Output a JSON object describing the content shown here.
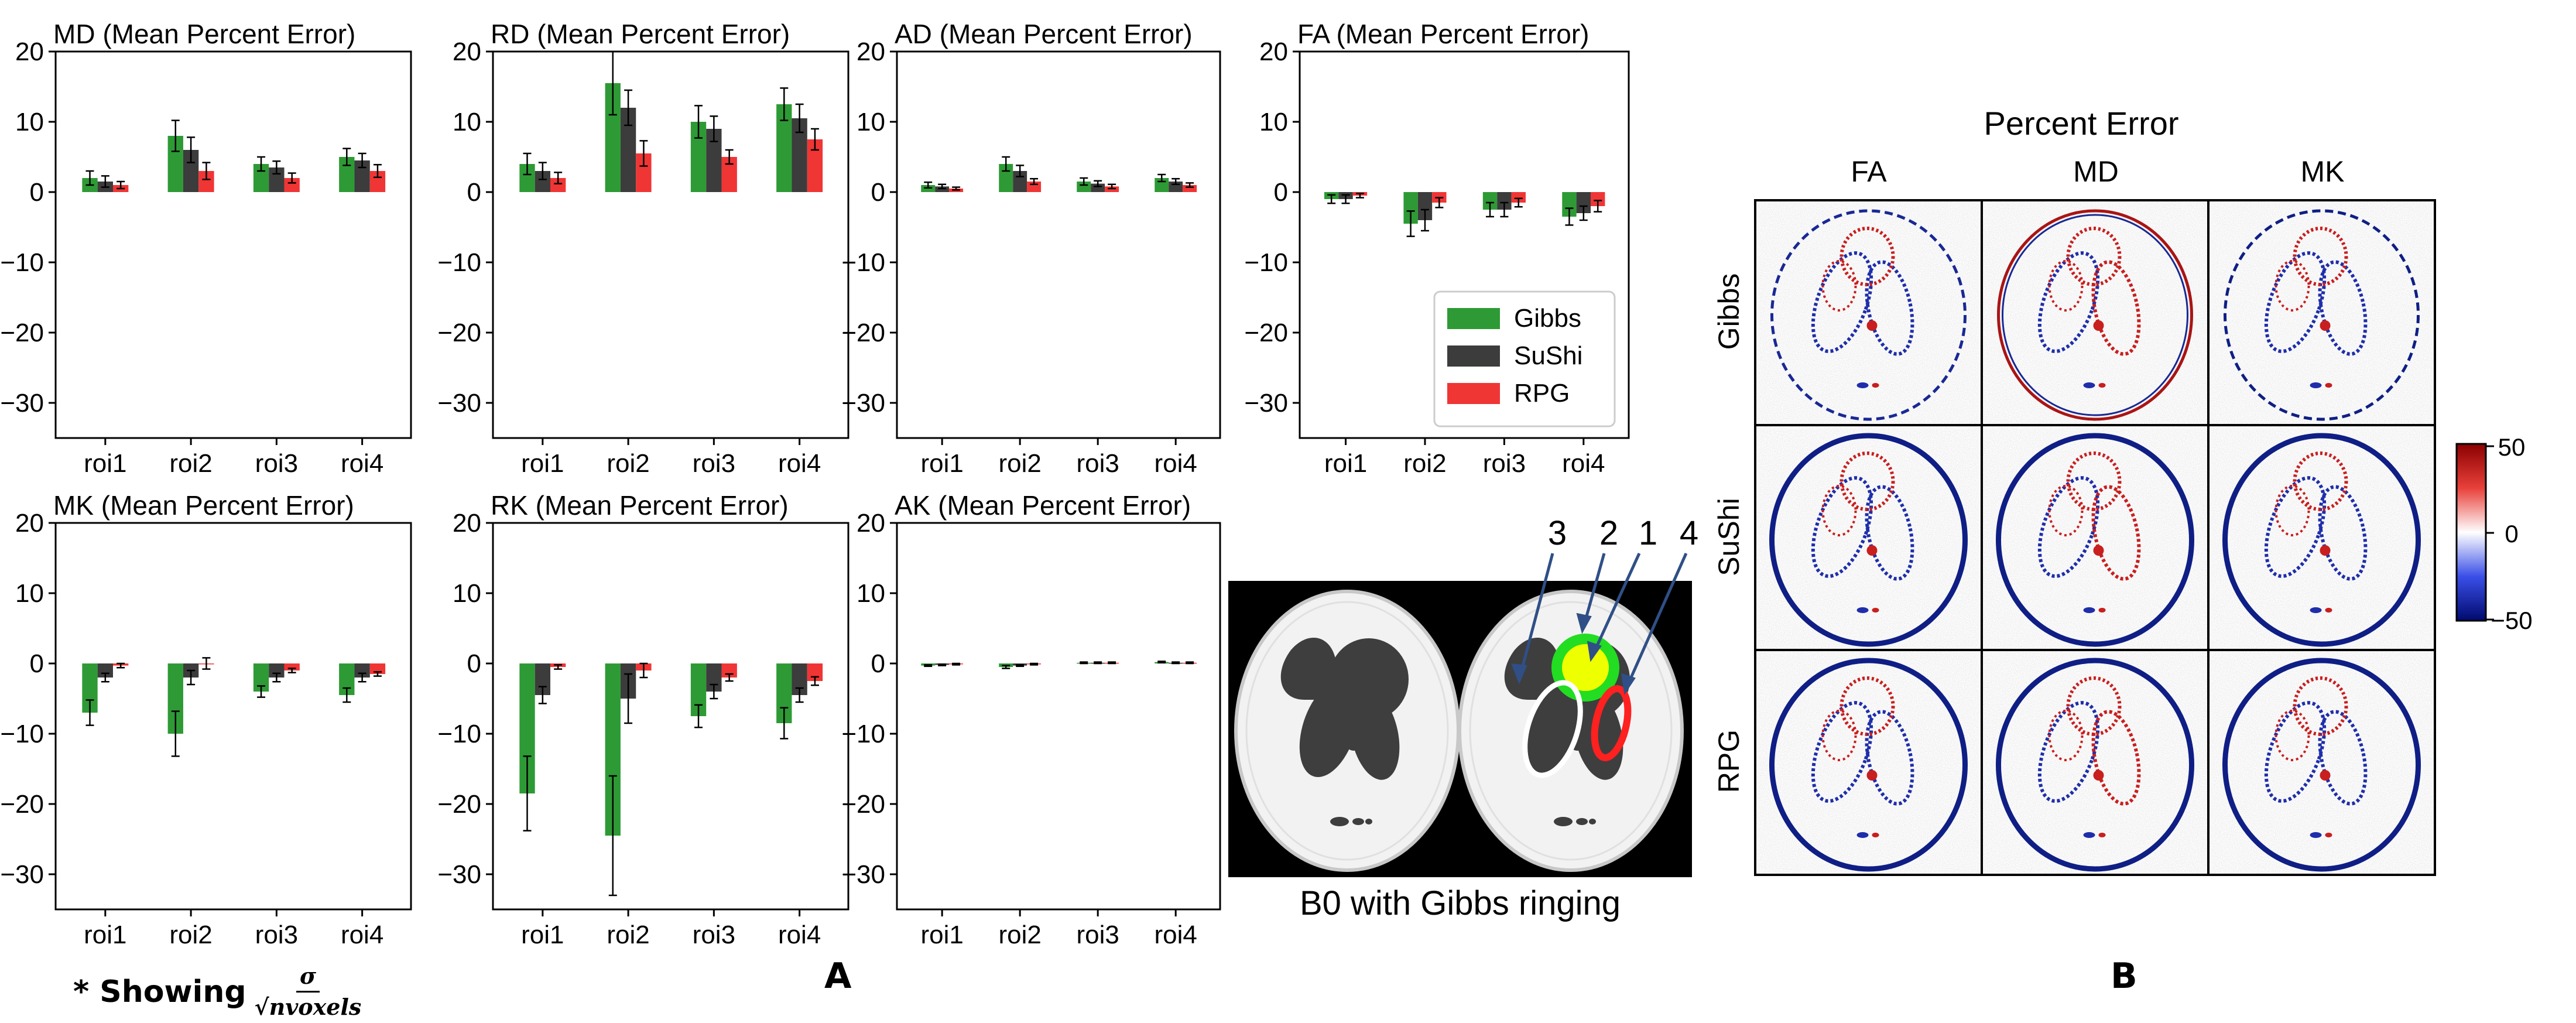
{
  "colors": {
    "gibbs": "#2e9a35",
    "sushi": "#3c3c3c",
    "rpg": "#f03535",
    "frame": "#000000"
  },
  "legend": [
    "Gibbs",
    "SuShi",
    "RPG"
  ],
  "chart_data": [
    {
      "type": "bar",
      "title": "MD (Mean Percent Error)",
      "categories": [
        "roi1",
        "roi2",
        "roi3",
        "roi4"
      ],
      "ylim": [
        -35,
        20
      ],
      "yticks": [
        20,
        10,
        0,
        -10,
        -20,
        -30
      ],
      "series": [
        {
          "name": "Gibbs",
          "values": [
            2.0,
            8.0,
            4.0,
            5.0
          ],
          "errors": [
            1.0,
            2.2,
            1.0,
            1.2
          ]
        },
        {
          "name": "SuShi",
          "values": [
            1.5,
            6.0,
            3.5,
            4.5
          ],
          "errors": [
            0.8,
            1.8,
            0.9,
            1.0
          ]
        },
        {
          "name": "RPG",
          "values": [
            1.0,
            3.0,
            2.0,
            3.0
          ],
          "errors": [
            0.5,
            1.2,
            0.7,
            0.9
          ]
        }
      ]
    },
    {
      "type": "bar",
      "title": "RD (Mean Percent Error)",
      "categories": [
        "roi1",
        "roi2",
        "roi3",
        "roi4"
      ],
      "ylim": [
        -35,
        20
      ],
      "yticks": [
        20,
        10,
        0,
        -10,
        -20,
        -30
      ],
      "series": [
        {
          "name": "Gibbs",
          "values": [
            4.0,
            15.5,
            10.0,
            12.5
          ],
          "errors": [
            1.5,
            4.5,
            2.3,
            2.3
          ]
        },
        {
          "name": "SuShi",
          "values": [
            3.0,
            12.0,
            9.0,
            10.5
          ],
          "errors": [
            1.2,
            2.5,
            1.8,
            2.0
          ]
        },
        {
          "name": "RPG",
          "values": [
            2.0,
            5.5,
            5.0,
            7.5
          ],
          "errors": [
            0.8,
            1.8,
            1.0,
            1.5
          ]
        }
      ]
    },
    {
      "type": "bar",
      "title": "AD (Mean Percent Error)",
      "categories": [
        "roi1",
        "roi2",
        "roi3",
        "roi4"
      ],
      "ylim": [
        -35,
        20
      ],
      "yticks": [
        20,
        10,
        0,
        -10,
        -20,
        -30
      ],
      "series": [
        {
          "name": "Gibbs",
          "values": [
            1.0,
            4.0,
            1.5,
            2.0
          ],
          "errors": [
            0.4,
            1.0,
            0.5,
            0.5
          ]
        },
        {
          "name": "SuShi",
          "values": [
            0.8,
            3.0,
            1.2,
            1.5
          ],
          "errors": [
            0.3,
            0.8,
            0.4,
            0.4
          ]
        },
        {
          "name": "RPG",
          "values": [
            0.5,
            1.5,
            0.8,
            1.0
          ],
          "errors": [
            0.2,
            0.4,
            0.3,
            0.3
          ]
        }
      ]
    },
    {
      "type": "bar",
      "title": "FA (Mean Percent Error)",
      "categories": [
        "roi1",
        "roi2",
        "roi3",
        "roi4"
      ],
      "ylim": [
        -35,
        20
      ],
      "yticks": [
        20,
        10,
        0,
        -10,
        -20,
        -30
      ],
      "series": [
        {
          "name": "Gibbs",
          "values": [
            -1.0,
            -4.5,
            -2.5,
            -3.5
          ],
          "errors": [
            0.6,
            1.8,
            1.0,
            1.2
          ]
        },
        {
          "name": "SuShi",
          "values": [
            -1.0,
            -4.0,
            -2.5,
            -3.0
          ],
          "errors": [
            0.6,
            1.5,
            1.0,
            1.0
          ]
        },
        {
          "name": "RPG",
          "values": [
            -0.5,
            -1.5,
            -1.5,
            -2.0
          ],
          "errors": [
            0.3,
            0.7,
            0.6,
            0.8
          ]
        }
      ]
    },
    {
      "type": "bar",
      "title": "MK (Mean Percent Error)",
      "categories": [
        "roi1",
        "roi2",
        "roi3",
        "roi4"
      ],
      "ylim": [
        -35,
        20
      ],
      "yticks": [
        20,
        10,
        0,
        -10,
        -20,
        -30
      ],
      "series": [
        {
          "name": "Gibbs",
          "values": [
            -7.0,
            -10.0,
            -4.0,
            -4.5
          ],
          "errors": [
            1.8,
            3.2,
            0.8,
            1.0
          ]
        },
        {
          "name": "SuShi",
          "values": [
            -2.0,
            -2.0,
            -2.0,
            -2.0
          ],
          "errors": [
            0.6,
            1.0,
            0.6,
            0.6
          ]
        },
        {
          "name": "RPG",
          "values": [
            -0.3,
            0.0,
            -1.0,
            -1.5
          ],
          "errors": [
            0.3,
            0.8,
            0.3,
            0.3
          ]
        }
      ]
    },
    {
      "type": "bar",
      "title": "RK (Mean Percent Error)",
      "categories": [
        "roi1",
        "roi2",
        "roi3",
        "roi4"
      ],
      "ylim": [
        -35,
        20
      ],
      "yticks": [
        20,
        10,
        0,
        -10,
        -20,
        -30
      ],
      "series": [
        {
          "name": "Gibbs",
          "values": [
            -18.5,
            -24.5,
            -7.5,
            -8.5
          ],
          "errors": [
            5.3,
            8.5,
            1.6,
            2.2
          ]
        },
        {
          "name": "SuShi",
          "values": [
            -4.5,
            -5.0,
            -4.0,
            -4.5
          ],
          "errors": [
            1.2,
            3.5,
            1.0,
            1.0
          ]
        },
        {
          "name": "RPG",
          "values": [
            -0.5,
            -1.0,
            -2.0,
            -2.5
          ],
          "errors": [
            0.3,
            1.0,
            0.5,
            0.6
          ]
        }
      ]
    },
    {
      "type": "bar",
      "title": "AK (Mean Percent Error)",
      "categories": [
        "roi1",
        "roi2",
        "roi3",
        "roi4"
      ],
      "ylim": [
        -35,
        20
      ],
      "yticks": [
        20,
        10,
        0,
        -10,
        -20,
        -30
      ],
      "series": [
        {
          "name": "Gibbs",
          "values": [
            -0.3,
            -0.5,
            0.1,
            0.2
          ],
          "errors": [
            0.1,
            0.2,
            0.1,
            0.1
          ]
        },
        {
          "name": "SuShi",
          "values": [
            -0.2,
            -0.3,
            0.1,
            0.1
          ],
          "errors": [
            0.1,
            0.1,
            0.1,
            0.1
          ]
        },
        {
          "name": "RPG",
          "values": [
            -0.1,
            -0.1,
            0.1,
            0.1
          ],
          "errors": [
            0.1,
            0.1,
            0.1,
            0.1
          ]
        }
      ]
    }
  ],
  "phantom": {
    "caption": "B0 with Gibbs ringing",
    "roi_labels": [
      "3",
      "2",
      "1",
      "4"
    ]
  },
  "grid": {
    "title": "Percent Error",
    "columns": [
      "FA",
      "MD",
      "MK"
    ],
    "rows": [
      "Gibbs",
      "SuShi",
      "RPG"
    ]
  },
  "colorbar": {
    "ticks": [
      "50",
      "0",
      "−50"
    ]
  },
  "note": {
    "prefix": "* Showing",
    "numerator": "σ",
    "denominator": "√nvoxels"
  },
  "panels": {
    "a": "A",
    "b": "B"
  }
}
